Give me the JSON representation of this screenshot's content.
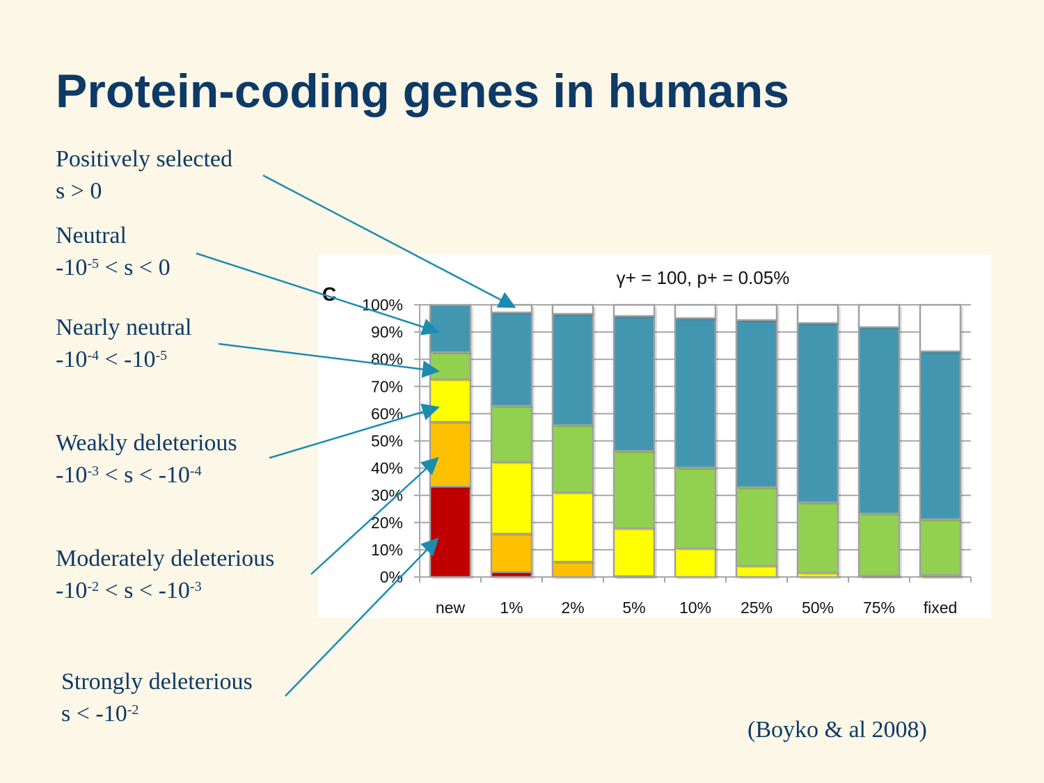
{
  "slide": {
    "title": "Protein-coding genes in humans",
    "citation": "(Boyko & al 2008)"
  },
  "labels": [
    {
      "name": "Positively selected",
      "line2": [
        {
          "t": "s > 0"
        }
      ]
    },
    {
      "name": "Neutral",
      "line2": [
        {
          "t": "-10"
        },
        {
          "sup": "-5"
        },
        {
          "t": " < s < 0"
        }
      ]
    },
    {
      "name": "Nearly neutral",
      "line2": [
        {
          "t": "-10"
        },
        {
          "sup": "-4"
        },
        {
          "t": " < -10"
        },
        {
          "sup": "-5"
        }
      ]
    },
    {
      "name": "Weakly deleterious",
      "line2": [
        {
          "t": "-10"
        },
        {
          "sup": "-3"
        },
        {
          "t": " < s < -10"
        },
        {
          "sup": "-4"
        }
      ]
    },
    {
      "name": "Moderately deleterious",
      "line2": [
        {
          "t": "-10"
        },
        {
          "sup": "-2"
        },
        {
          "t": " < s < -10"
        },
        {
          "sup": "-3"
        }
      ]
    },
    {
      "name": "Strongly deleterious",
      "line2": [
        {
          "t": "s < -10"
        },
        {
          "sup": "-2"
        }
      ]
    }
  ],
  "chart_data": {
    "type": "bar",
    "stacked": true,
    "panel_letter": "C",
    "title": "γ+  =  100, p+ = 0.05%",
    "categories": [
      "new",
      "1%",
      "2%",
      "5%",
      "10%",
      "25%",
      "50%",
      "75%",
      "fixed"
    ],
    "ylim": [
      0,
      100
    ],
    "yticks": [
      "0%",
      "10%",
      "20%",
      "30%",
      "40%",
      "50%",
      "60%",
      "70%",
      "80%",
      "90%",
      "100%"
    ],
    "grid": true,
    "series": [
      {
        "name": "Strongly deleterious",
        "color": "#C00000",
        "values": [
          33.2,
          1.8,
          0,
          0,
          0,
          0,
          0,
          0,
          0
        ]
      },
      {
        "name": "Moderately deleterious",
        "color": "#FFC000",
        "values": [
          23.8,
          14.1,
          5.6,
          0.3,
          0,
          0,
          0,
          0,
          0
        ]
      },
      {
        "name": "Weakly deleterious",
        "color": "#FFFF00",
        "values": [
          15.6,
          26.3,
          25.4,
          17.6,
          10.5,
          4.1,
          1.5,
          0.5,
          0.7
        ]
      },
      {
        "name": "Nearly neutral",
        "color": "#92D050",
        "values": [
          10.0,
          20.7,
          24.8,
          28.4,
          29.7,
          28.9,
          25.9,
          22.8,
          20.5
        ]
      },
      {
        "name": "Neutral",
        "color": "#4396B0",
        "values": [
          17.4,
          34.3,
          40.9,
          49.6,
          54.9,
          61.4,
          65.9,
          68.5,
          61.7
        ]
      },
      {
        "name": "Positively selected",
        "color": "#FFFFFF",
        "values": [
          0,
          2.8,
          3.3,
          4.1,
          4.9,
          5.6,
          6.7,
          8.2,
          17.1
        ]
      }
    ]
  }
}
